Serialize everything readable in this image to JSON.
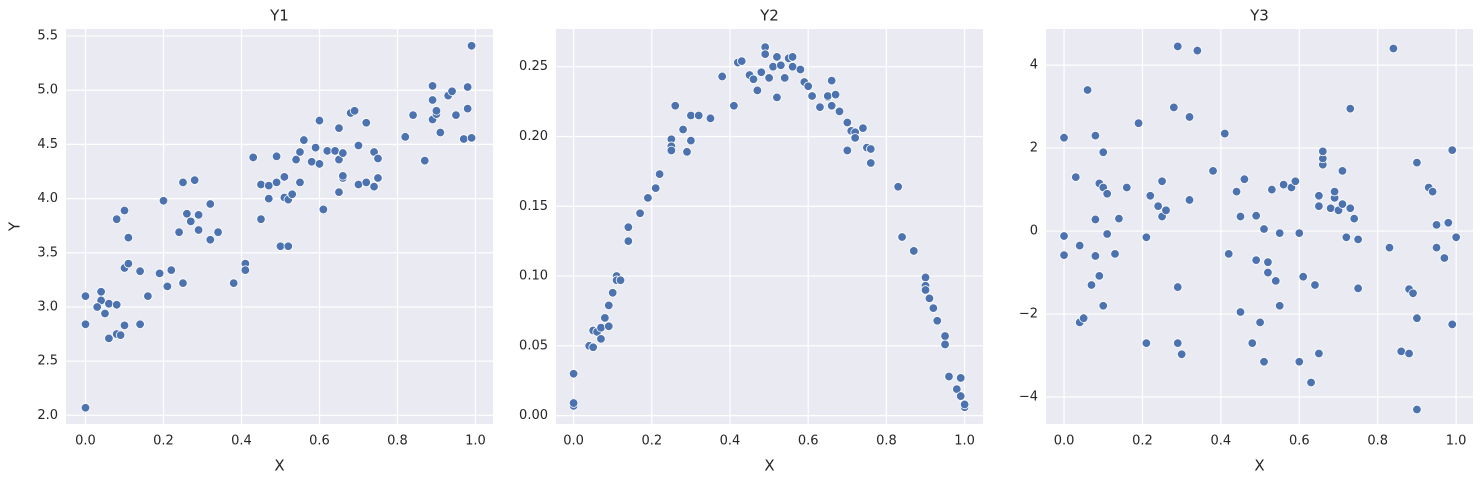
{
  "chart_data": [
    {
      "type": "scatter",
      "title": "Y1",
      "x_label": "X",
      "y_label": "Y",
      "color": "#4c72b0",
      "grid": true,
      "xlim": [
        -0.05,
        1.045
      ],
      "ylim": [
        1.92,
        5.565
      ],
      "xticks": [
        {
          "value": 0,
          "label": "0.0"
        },
        0.2,
        0.4,
        0.6,
        0.8,
        {
          "value": 1,
          "label": "1.0"
        }
      ],
      "yticks": [
        {
          "value": 2,
          "label": "2.0"
        },
        2.5,
        {
          "value": 3,
          "label": "3.0"
        },
        3.5,
        {
          "value": 4,
          "label": "4.0"
        },
        4.5,
        {
          "value": 5,
          "label": "5.0"
        },
        5.5
      ],
      "x": [
        0.0,
        0.0,
        0.0,
        0.04,
        0.04,
        0.03,
        0.05,
        0.06,
        0.06,
        0.08,
        0.08,
        0.08,
        0.09,
        0.1,
        0.1,
        0.1,
        0.11,
        0.11,
        0.14,
        0.14,
        0.16,
        0.19,
        0.2,
        0.21,
        0.22,
        0.24,
        0.25,
        0.25,
        0.26,
        0.27,
        0.28,
        0.29,
        0.29,
        0.32,
        0.32,
        0.34,
        0.38,
        0.41,
        0.41,
        0.43,
        0.45,
        0.45,
        0.47,
        0.47,
        0.49,
        0.49,
        0.5,
        0.51,
        0.51,
        0.52,
        0.52,
        0.53,
        0.54,
        0.55,
        0.55,
        0.56,
        0.58,
        0.59,
        0.6,
        0.6,
        0.61,
        0.62,
        0.64,
        0.65,
        0.65,
        0.65,
        0.66,
        0.66,
        0.66,
        0.68,
        0.69,
        0.7,
        0.7,
        0.72,
        0.72,
        0.74,
        0.74,
        0.75,
        0.75,
        0.82,
        0.84,
        0.87,
        0.89,
        0.89,
        0.89,
        0.9,
        0.9,
        0.91,
        0.93,
        0.94,
        0.95,
        0.97,
        0.98,
        0.98,
        0.99,
        0.99
      ],
      "values": [
        2.07,
        3.1,
        2.84,
        3.14,
        3.06,
        3.0,
        2.94,
        2.71,
        3.03,
        3.02,
        3.81,
        2.75,
        2.74,
        2.83,
        3.89,
        3.36,
        3.4,
        3.64,
        3.33,
        2.84,
        3.1,
        3.31,
        3.98,
        3.19,
        3.34,
        3.69,
        3.22,
        4.15,
        3.86,
        3.79,
        4.17,
        3.85,
        3.71,
        3.95,
        3.62,
        3.69,
        3.22,
        3.4,
        3.34,
        4.38,
        3.81,
        4.13,
        4.12,
        4.0,
        4.39,
        4.15,
        3.56,
        4.01,
        4.2,
        3.56,
        3.99,
        4.04,
        4.36,
        4.43,
        4.15,
        4.54,
        4.34,
        4.47,
        4.32,
        4.72,
        3.9,
        4.44,
        4.44,
        4.65,
        4.06,
        4.36,
        4.42,
        4.19,
        4.21,
        4.79,
        4.81,
        4.49,
        4.13,
        4.15,
        4.7,
        4.11,
        4.43,
        4.37,
        4.19,
        4.57,
        4.77,
        4.35,
        4.91,
        5.04,
        4.73,
        4.78,
        4.81,
        4.61,
        4.95,
        4.99,
        4.77,
        4.55,
        5.03,
        4.83,
        5.41,
        4.56
      ]
    },
    {
      "type": "scatter",
      "title": "Y2",
      "x_label": "X",
      "color": "#4c72b0",
      "grid": true,
      "xlim": [
        -0.045,
        1.047
      ],
      "ylim": [
        -0.006,
        0.277
      ],
      "xticks": [
        {
          "value": 0,
          "label": "0.0"
        },
        0.2,
        0.4,
        0.6,
        0.8,
        {
          "value": 1,
          "label": "1.0"
        }
      ],
      "yticks": [
        {
          "value": 0,
          "label": "0.00"
        },
        0.05,
        {
          "value": 0.1,
          "label": "0.10"
        },
        0.15,
        {
          "value": 0.2,
          "label": "0.20"
        },
        0.25
      ],
      "x": [
        0.0,
        0.0,
        0.0,
        0.04,
        0.05,
        0.05,
        0.06,
        0.07,
        0.07,
        0.08,
        0.09,
        0.09,
        0.1,
        0.11,
        0.11,
        0.12,
        0.14,
        0.14,
        0.17,
        0.19,
        0.21,
        0.22,
        0.25,
        0.25,
        0.25,
        0.26,
        0.28,
        0.29,
        0.3,
        0.3,
        0.32,
        0.35,
        0.38,
        0.41,
        0.42,
        0.43,
        0.45,
        0.46,
        0.47,
        0.48,
        0.49,
        0.49,
        0.5,
        0.51,
        0.52,
        0.52,
        0.53,
        0.54,
        0.55,
        0.56,
        0.56,
        0.58,
        0.59,
        0.6,
        0.61,
        0.63,
        0.65,
        0.65,
        0.66,
        0.66,
        0.67,
        0.68,
        0.7,
        0.7,
        0.71,
        0.72,
        0.72,
        0.74,
        0.75,
        0.76,
        0.76,
        0.83,
        0.84,
        0.87,
        0.9,
        0.9,
        0.9,
        0.91,
        0.92,
        0.93,
        0.95,
        0.95,
        0.96,
        0.98,
        0.99,
        0.99,
        1.0,
        1.0
      ],
      "values": [
        0.007,
        0.009,
        0.03,
        0.05,
        0.049,
        0.061,
        0.06,
        0.055,
        0.063,
        0.07,
        0.064,
        0.079,
        0.088,
        0.1,
        0.097,
        0.097,
        0.125,
        0.135,
        0.145,
        0.156,
        0.163,
        0.173,
        0.198,
        0.193,
        0.19,
        0.222,
        0.205,
        0.189,
        0.197,
        0.215,
        0.215,
        0.213,
        0.243,
        0.222,
        0.253,
        0.254,
        0.244,
        0.241,
        0.233,
        0.246,
        0.264,
        0.259,
        0.242,
        0.25,
        0.228,
        0.257,
        0.251,
        0.242,
        0.256,
        0.257,
        0.25,
        0.248,
        0.239,
        0.236,
        0.229,
        0.221,
        0.228,
        0.229,
        0.24,
        0.222,
        0.23,
        0.218,
        0.21,
        0.19,
        0.204,
        0.203,
        0.199,
        0.206,
        0.192,
        0.191,
        0.181,
        0.164,
        0.128,
        0.118,
        0.099,
        0.093,
        0.09,
        0.084,
        0.077,
        0.068,
        0.057,
        0.051,
        0.028,
        0.019,
        0.027,
        0.014,
        0.006,
        0.008
      ]
    },
    {
      "type": "scatter",
      "title": "Y3",
      "x_label": "X",
      "color": "#4c72b0",
      "grid": true,
      "xlim": [
        -0.046,
        1.043
      ],
      "ylim": [
        -4.65,
        4.87
      ],
      "xticks": [
        {
          "value": 0,
          "label": "0.0"
        },
        0.2,
        0.4,
        0.6,
        0.8,
        {
          "value": 1,
          "label": "1.0"
        }
      ],
      "yticks": [
        {
          "value": -4,
          "label": "−4"
        },
        {
          "value": -2,
          "label": "−2"
        },
        0,
        2,
        4
      ],
      "x": [
        0.0,
        0.0,
        0.0,
        0.03,
        0.04,
        0.04,
        0.05,
        0.06,
        0.07,
        0.08,
        0.08,
        0.08,
        0.09,
        0.09,
        0.1,
        0.1,
        0.1,
        0.11,
        0.11,
        0.13,
        0.14,
        0.16,
        0.19,
        0.21,
        0.21,
        0.22,
        0.24,
        0.25,
        0.25,
        0.26,
        0.28,
        0.29,
        0.29,
        0.29,
        0.3,
        0.32,
        0.32,
        0.34,
        0.38,
        0.41,
        0.42,
        0.44,
        0.45,
        0.45,
        0.46,
        0.48,
        0.49,
        0.49,
        0.5,
        0.51,
        0.51,
        0.52,
        0.52,
        0.53,
        0.54,
        0.55,
        0.55,
        0.56,
        0.58,
        0.59,
        0.6,
        0.6,
        0.61,
        0.63,
        0.64,
        0.65,
        0.65,
        0.65,
        0.66,
        0.66,
        0.66,
        0.68,
        0.69,
        0.69,
        0.7,
        0.71,
        0.71,
        0.72,
        0.73,
        0.73,
        0.74,
        0.75,
        0.75,
        0.83,
        0.84,
        0.86,
        0.88,
        0.89,
        0.88,
        0.9,
        0.9,
        0.9,
        0.93,
        0.94,
        0.95,
        0.95,
        0.97,
        0.98,
        0.99,
        0.99,
        1.0
      ],
      "values": [
        -0.12,
        -0.58,
        2.25,
        1.3,
        -0.35,
        -2.2,
        -2.1,
        3.4,
        -1.3,
        -0.6,
        0.28,
        2.3,
        1.15,
        -1.08,
        1.05,
        1.9,
        -1.8,
        -0.07,
        0.9,
        -0.55,
        0.3,
        1.05,
        2.6,
        -0.15,
        -2.7,
        0.85,
        0.6,
        1.2,
        0.35,
        0.5,
        2.98,
        -1.35,
        -2.7,
        4.45,
        -2.97,
        2.75,
        0.75,
        4.35,
        1.45,
        2.35,
        -0.55,
        0.95,
        -1.95,
        0.35,
        1.25,
        -2.7,
        -0.7,
        0.37,
        -2.2,
        -3.15,
        0.05,
        -0.75,
        -1.0,
        1.0,
        -1.2,
        -1.8,
        -0.05,
        1.12,
        1.05,
        1.2,
        -0.05,
        -3.15,
        -1.1,
        -3.65,
        -1.3,
        -2.95,
        0.6,
        0.85,
        1.6,
        1.75,
        1.92,
        0.55,
        0.8,
        0.95,
        0.5,
        0.65,
        1.45,
        -0.15,
        0.55,
        2.95,
        0.3,
        -0.2,
        -1.38,
        -0.4,
        4.4,
        -2.9,
        -1.4,
        -1.5,
        -2.95,
        -4.3,
        1.65,
        -2.1,
        1.05,
        0.95,
        0.15,
        -0.4,
        -0.65,
        0.2,
        -2.25,
        1.95,
        -0.15
      ]
    }
  ]
}
